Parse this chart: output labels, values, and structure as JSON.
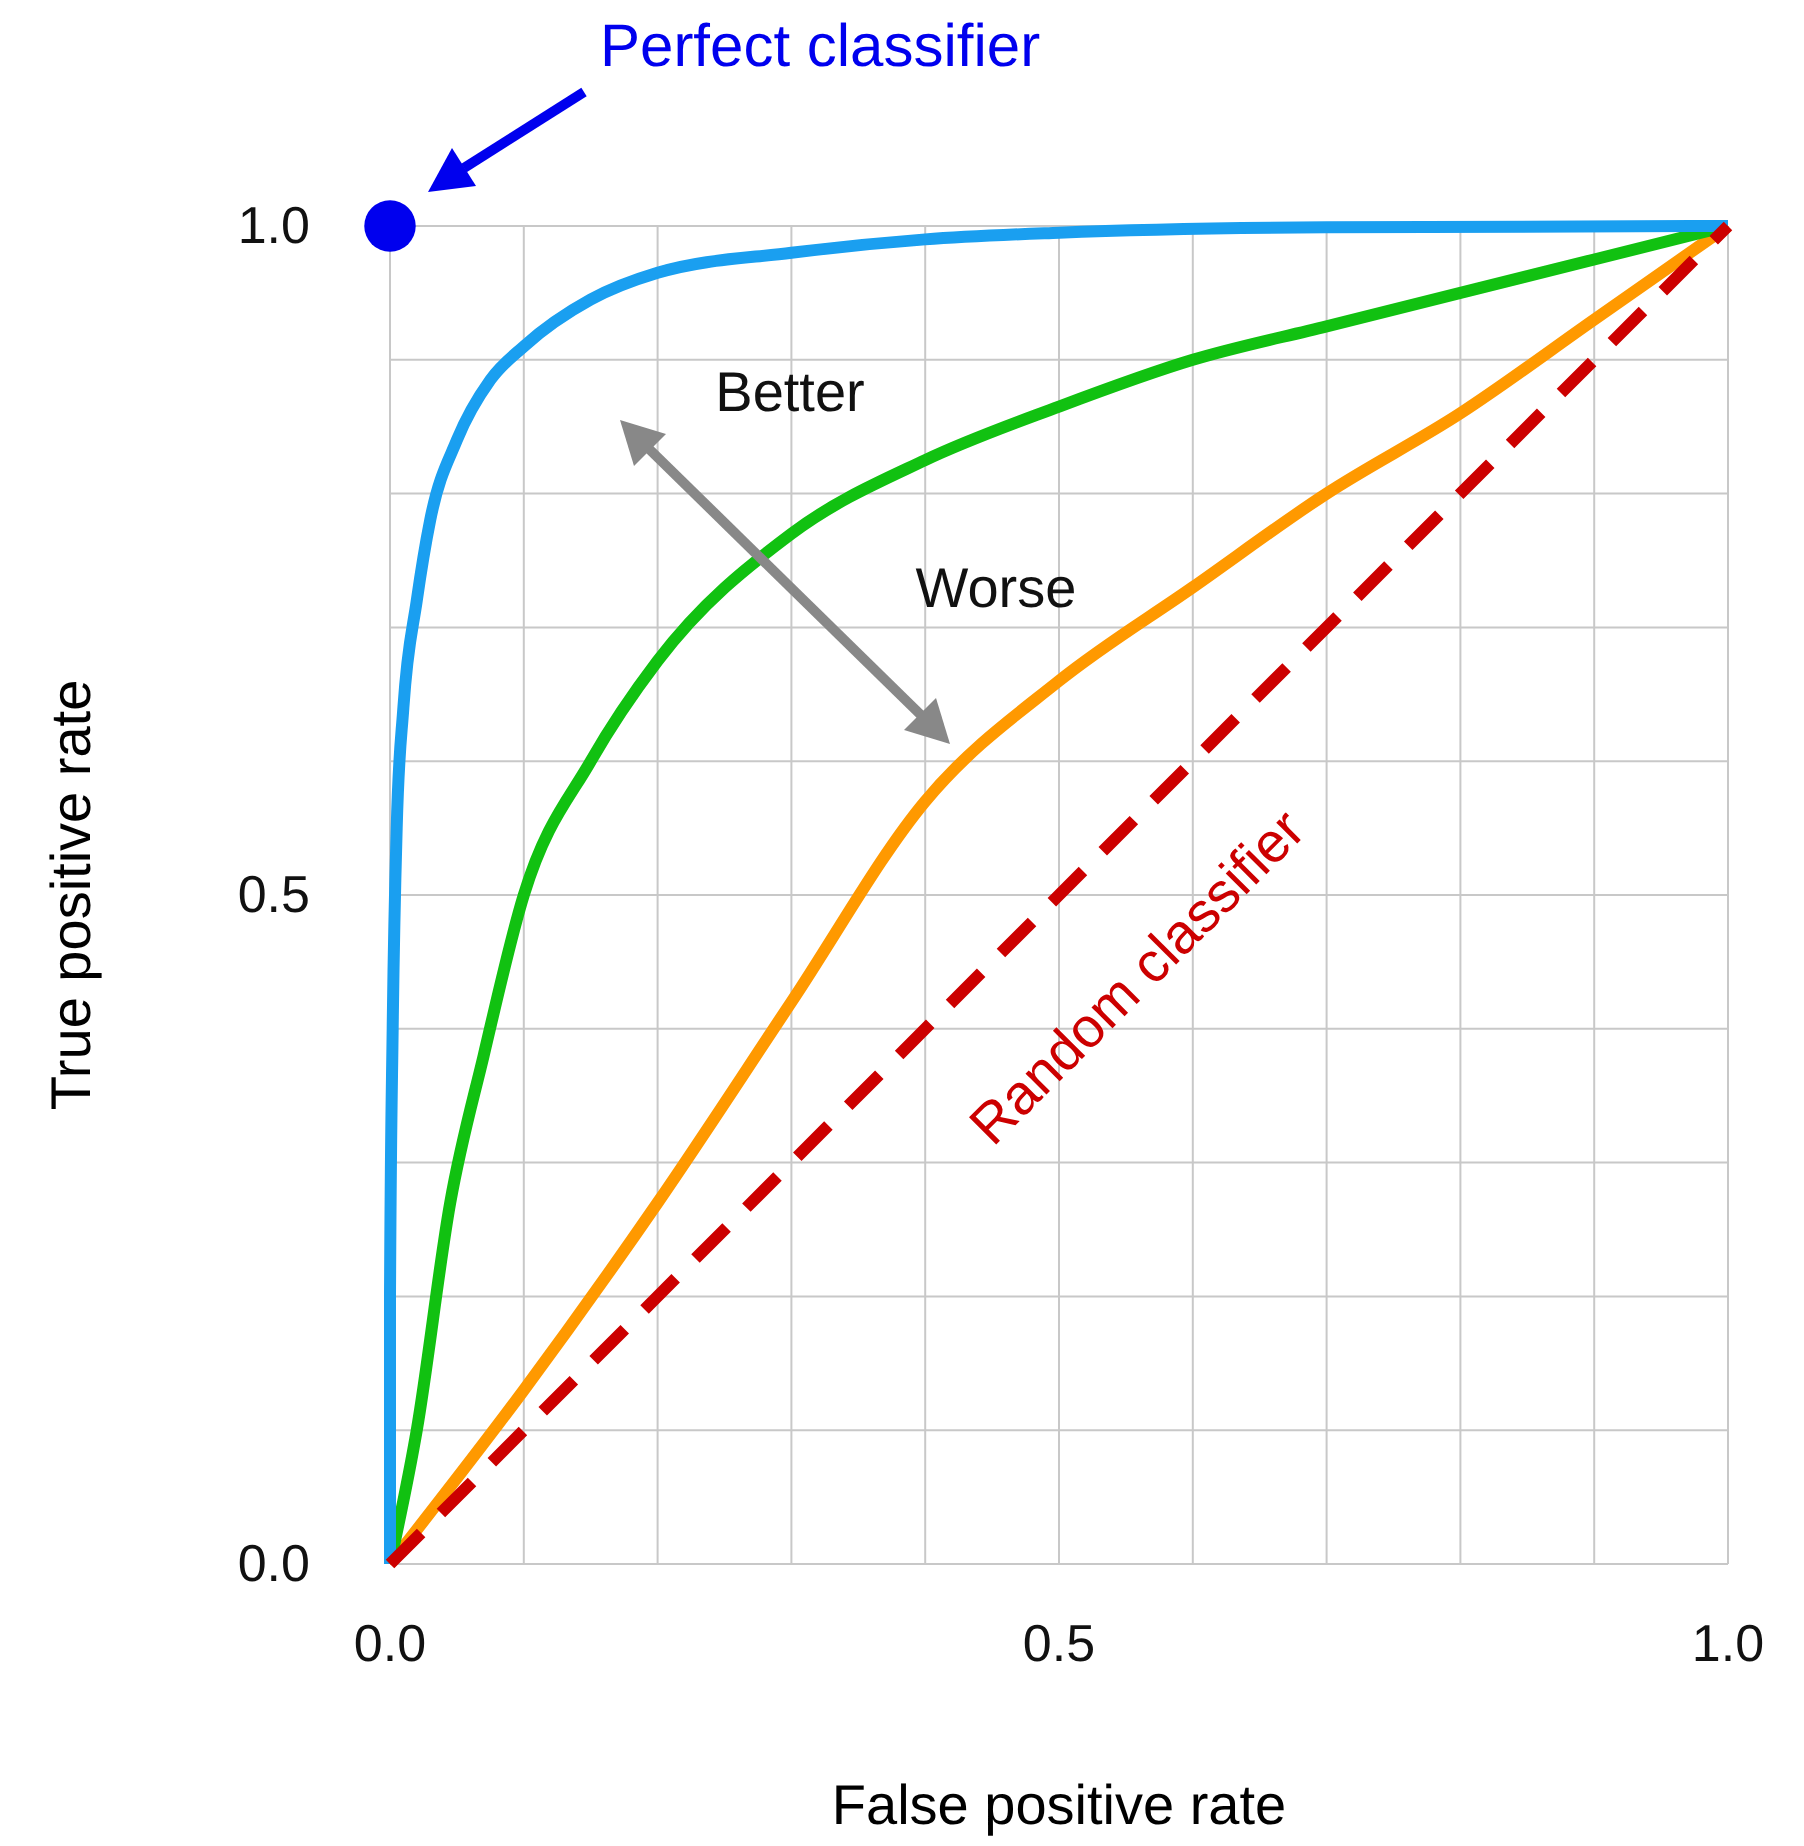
{
  "chart_data": {
    "type": "line",
    "xlabel": "False positive rate",
    "ylabel": "True positive rate",
    "xlim": [
      0,
      1
    ],
    "ylim": [
      0,
      1
    ],
    "xticks": [
      {
        "value": 0,
        "label": "0.0"
      },
      {
        "value": 0.1,
        "label": null
      },
      {
        "value": 0.2,
        "label": null
      },
      {
        "value": 0.3,
        "label": null
      },
      {
        "value": 0.4,
        "label": null
      },
      {
        "value": 0.5,
        "label": "0.5"
      },
      {
        "value": 0.6,
        "label": null
      },
      {
        "value": 0.7,
        "label": null
      },
      {
        "value": 0.8,
        "label": null
      },
      {
        "value": 0.9,
        "label": null
      },
      {
        "value": 1,
        "label": "1.0"
      }
    ],
    "yticks": [
      {
        "value": 0,
        "label": "0.0"
      },
      {
        "value": 0.1,
        "label": null
      },
      {
        "value": 0.2,
        "label": null
      },
      {
        "value": 0.3,
        "label": null
      },
      {
        "value": 0.4,
        "label": null
      },
      {
        "value": 0.5,
        "label": "0.5"
      },
      {
        "value": 0.6,
        "label": null
      },
      {
        "value": 0.7,
        "label": null
      },
      {
        "value": 0.8,
        "label": null
      },
      {
        "value": 0.9,
        "label": null
      },
      {
        "value": 1,
        "label": "1.0"
      }
    ],
    "grid": true,
    "series": [
      {
        "color": "#ff9900",
        "line_style": "solid",
        "x": [
          0,
          0.1,
          0.2,
          0.3,
          0.4,
          0.5,
          0.6,
          0.7,
          0.8,
          0.9,
          1
        ],
        "values": [
          0,
          0.13,
          0.27,
          0.42,
          0.57,
          0.66,
          0.73,
          0.8,
          0.86,
          0.93,
          1
        ]
      },
      {
        "color": "#11c111",
        "line_style": "solid",
        "x": [
          0,
          0.02,
          0.045,
          0.07,
          0.1,
          0.15,
          0.2,
          0.3,
          0.4,
          0.5,
          0.6,
          0.7,
          0.8,
          0.9,
          1
        ],
        "values": [
          0,
          0.1,
          0.27,
          0.38,
          0.5,
          0.6,
          0.675,
          0.77,
          0.825,
          0.865,
          0.9,
          0.925,
          0.95,
          0.975,
          1
        ]
      },
      {
        "color": "#1a9ff0",
        "line_style": "solid",
        "x": [
          0,
          0,
          0.002,
          0.005,
          0.01,
          0.02,
          0.03,
          0.05,
          0.075,
          0.1,
          0.15,
          0.2,
          0.3,
          0.4,
          0.5,
          0.7,
          1
        ],
        "values": [
          0,
          0.2,
          0.4,
          0.55,
          0.64,
          0.72,
          0.78,
          0.84,
          0.885,
          0.91,
          0.945,
          0.965,
          0.98,
          0.99,
          0.995,
          0.999,
          1
        ]
      },
      {
        "color": "#cc0000",
        "line_style": "dashed",
        "x": [
          0,
          1
        ],
        "values": [
          0,
          1
        ]
      },
      {
        "type": "scatter",
        "color": "#0000ee",
        "marker": "circle",
        "x": [
          0
        ],
        "values": [
          1
        ]
      }
    ],
    "annotations": [
      "Perfect classifier",
      "Better",
      "Worse",
      "Random classifier"
    ]
  }
}
